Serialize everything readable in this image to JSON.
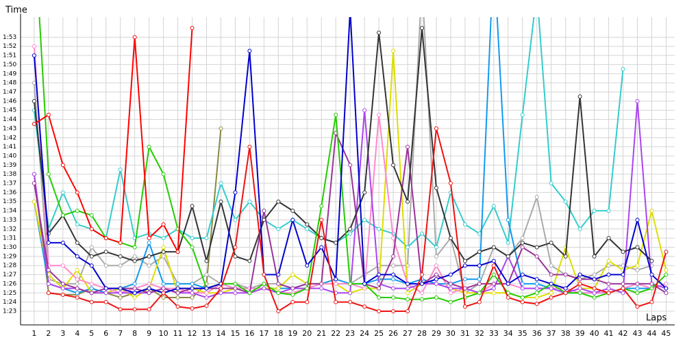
{
  "chart_data": {
    "type": "line",
    "y_label": "Time",
    "x_label": "Laps",
    "grid": true,
    "x": [
      1,
      2,
      3,
      4,
      5,
      6,
      7,
      8,
      9,
      10,
      11,
      12,
      13,
      14,
      15,
      16,
      17,
      18,
      19,
      20,
      21,
      22,
      23,
      24,
      25,
      26,
      27,
      28,
      29,
      30,
      31,
      32,
      33,
      34,
      35,
      36,
      37,
      38,
      39,
      40,
      41,
      42,
      43,
      44,
      45
    ],
    "xlim": [
      0.05,
      45.6
    ],
    "xticks": [
      1,
      2,
      3,
      4,
      5,
      6,
      7,
      8,
      9,
      10,
      11,
      12,
      13,
      14,
      15,
      16,
      17,
      18,
      19,
      20,
      21,
      22,
      23,
      24,
      25,
      26,
      27,
      28,
      29,
      30,
      31,
      32,
      33,
      34,
      35,
      36,
      37,
      38,
      39,
      40,
      41,
      42,
      43,
      44,
      45
    ],
    "ylim": [
      81.5,
      115.2
    ],
    "yticks": [
      {
        "value": 83,
        "label": "1:23"
      },
      {
        "value": 84,
        "label": "1:24"
      },
      {
        "value": 85,
        "label": "1:25"
      },
      {
        "value": 86,
        "label": "1:26"
      },
      {
        "value": 87,
        "label": "1:27"
      },
      {
        "value": 88,
        "label": "1:28"
      },
      {
        "value": 89,
        "label": "1:29"
      },
      {
        "value": 90,
        "label": "1:30"
      },
      {
        "value": 91,
        "label": "1:31"
      },
      {
        "value": 92,
        "label": "1:32"
      },
      {
        "value": 93,
        "label": "1:33"
      },
      {
        "value": 94,
        "label": "1:34"
      },
      {
        "value": 95,
        "label": "1:35"
      },
      {
        "value": 96,
        "label": "1:36"
      },
      {
        "value": 97,
        "label": "1:37"
      },
      {
        "value": 98,
        "label": "1:38"
      },
      {
        "value": 99,
        "label": "1:39"
      },
      {
        "value": 100,
        "label": "1:40"
      },
      {
        "value": 101,
        "label": "1:41"
      },
      {
        "value": 102,
        "label": "1:42"
      },
      {
        "value": 103,
        "label": "1:43"
      },
      {
        "value": 104,
        "label": "1:44"
      },
      {
        "value": 105,
        "label": "1:45"
      },
      {
        "value": 106,
        "label": "1:46"
      },
      {
        "value": 107,
        "label": "1:47"
      },
      {
        "value": 108,
        "label": "1:48"
      },
      {
        "value": 109,
        "label": "1:49"
      },
      {
        "value": 110,
        "label": "1:50"
      },
      {
        "value": 111,
        "label": "1:51"
      },
      {
        "value": 112,
        "label": "1:52"
      },
      {
        "value": 113,
        "label": "1:53"
      }
    ],
    "series": [
      {
        "color": "#888844",
        "values": [
          98,
          85,
          84.8,
          84.8,
          85.5,
          85,
          84.5,
          85,
          85.5,
          84.5,
          84.5,
          84.5,
          86,
          103,
          null,
          null,
          null,
          null,
          null,
          null,
          null,
          null,
          null,
          null,
          null,
          null,
          null,
          null,
          null,
          null,
          null,
          null,
          null,
          null,
          null,
          null,
          null,
          null,
          null,
          null,
          null,
          null,
          null,
          null,
          null
        ]
      },
      {
        "color": "#aaaaaa",
        "values": [
          108,
          86.5,
          86,
          86,
          90,
          88,
          88,
          89,
          88,
          89,
          86,
          86,
          87,
          86,
          86,
          85.5,
          86,
          86,
          85.5,
          85.5,
          86,
          86,
          86,
          87,
          88,
          88,
          88,
          119,
          89,
          91,
          85,
          86,
          90,
          89,
          91,
          95.5,
          88,
          87,
          86.5,
          87,
          88,
          88,
          87.5,
          88,
          null
        ]
      },
      {
        "color": "#33cccc",
        "values": [
          105,
          92,
          96,
          92.5,
          92,
          91,
          98.5,
          91,
          91.5,
          91,
          92,
          91,
          91,
          97,
          93,
          95,
          93,
          92,
          93,
          92,
          91,
          90.5,
          91.5,
          93,
          92,
          91.5,
          90,
          91.5,
          90,
          96,
          92.5,
          91.5,
          94.5,
          90.5,
          104.5,
          118,
          97,
          95,
          92,
          94,
          94,
          109.5,
          null,
          null,
          null
        ]
      },
      {
        "color": "#1199ee",
        "values": [
          95,
          86,
          85.5,
          85,
          85.5,
          85,
          85.5,
          86,
          90.5,
          86,
          86,
          86,
          85.5,
          86,
          85.5,
          85.5,
          85.5,
          85.5,
          85.5,
          86,
          86,
          86.5,
          86,
          86,
          86.5,
          86.5,
          86,
          86.5,
          86,
          86,
          86.5,
          86.5,
          122,
          93,
          86,
          86,
          85.5,
          85,
          85,
          85,
          85,
          85.5,
          85.5,
          85.5,
          null
        ]
      },
      {
        "color": "#dddd00",
        "values": [
          95,
          87,
          85.5,
          87.5,
          85,
          85,
          85.5,
          84.5,
          85.5,
          90,
          85,
          85.5,
          85,
          85,
          85.5,
          85,
          85.5,
          85.5,
          87,
          86,
          86,
          86,
          85,
          85.5,
          85.5,
          111.5,
          85,
          86,
          86,
          85.5,
          85,
          85,
          85,
          85,
          84.5,
          84.5,
          85,
          90,
          85.5,
          85.5,
          88.5,
          87.5,
          88,
          94,
          87.5
        ]
      },
      {
        "color": "#ff88cc",
        "values": [
          112,
          88,
          88,
          86.5,
          86,
          85.5,
          85,
          85.5,
          86,
          85.5,
          85.5,
          85,
          85,
          86,
          85.5,
          85.5,
          85.5,
          85,
          85,
          85.5,
          86,
          86,
          86,
          85.5,
          104.5,
          91,
          86,
          85,
          88,
          85,
          85.5,
          85,
          86,
          86,
          85.5,
          85.5,
          85.5,
          85.5,
          85,
          85,
          85,
          85.5,
          86,
          85.5,
          86
        ]
      },
      {
        "color": "#aa44ee",
        "values": [
          98,
          86,
          85.5,
          85.5,
          85,
          85,
          85,
          85,
          85,
          85.5,
          85,
          85,
          84.5,
          85,
          85,
          85,
          85.5,
          85,
          85.5,
          85.5,
          85.5,
          85,
          85,
          105,
          86,
          85.5,
          85.5,
          86,
          86,
          85.5,
          85.5,
          85,
          85.5,
          89,
          85.5,
          85.5,
          85.5,
          85,
          85.5,
          85,
          85.5,
          85,
          106,
          86,
          85.5
        ]
      },
      {
        "color": "#993399",
        "values": [
          97,
          87.5,
          86,
          85.5,
          85,
          85.5,
          85.5,
          85.5,
          85,
          85.5,
          85,
          85.5,
          85.5,
          85.5,
          85.5,
          85,
          94,
          86,
          85.5,
          86,
          86,
          102.5,
          99,
          86,
          85.5,
          89,
          101,
          86,
          87,
          86,
          85.5,
          86,
          86,
          86,
          90,
          89,
          87,
          87,
          86.5,
          86.5,
          86,
          86,
          86,
          86,
          85
        ]
      },
      {
        "color": "#333333",
        "values": [
          106,
          91.5,
          93.5,
          90.5,
          89,
          89.5,
          89,
          88.5,
          89,
          89.5,
          89.5,
          94.5,
          88.5,
          95,
          89,
          88.5,
          93,
          95,
          94,
          92.5,
          91,
          90.5,
          92,
          96,
          113.5,
          99,
          95,
          114,
          96.5,
          91,
          88.5,
          89.5,
          90,
          89,
          90.5,
          90,
          90.5,
          89,
          106.5,
          89,
          91,
          89.5,
          90,
          88.5,
          null
        ]
      },
      {
        "color": "#22cc00",
        "values": [
          125,
          98,
          93.5,
          94,
          93.5,
          91,
          90.5,
          90,
          101,
          98,
          92,
          90,
          85.5,
          86,
          86,
          85,
          86,
          85,
          84.8,
          85.5,
          94.5,
          104.5,
          86,
          86,
          84.5,
          84.5,
          84.3,
          84.3,
          84.5,
          84,
          84.5,
          85,
          87,
          85,
          84.5,
          85,
          86,
          85,
          85,
          84.5,
          85,
          85.5,
          85,
          85.5,
          87
        ]
      },
      {
        "color": "#0000cc",
        "values": [
          111,
          90.5,
          90.5,
          89,
          88,
          85.5,
          85.5,
          85,
          85.5,
          85,
          85.5,
          85.5,
          85.5,
          86,
          96,
          111.5,
          87,
          87,
          93,
          88,
          90,
          86.5,
          116,
          86,
          87,
          87,
          86,
          86,
          86.5,
          87,
          88,
          88,
          88.5,
          86,
          87,
          86.5,
          86,
          85.5,
          87,
          86.5,
          87,
          87,
          93,
          87,
          85.5
        ]
      },
      {
        "color": "#ee1111",
        "values": [
          null,
          85,
          84.8,
          84.5,
          84,
          84,
          83.2,
          83.2,
          83.2,
          85,
          83.5,
          83.3,
          83.6,
          85.5,
          90,
          101,
          87,
          83,
          84,
          84,
          93,
          84,
          84,
          83.5,
          83,
          83,
          83,
          87,
          103,
          97,
          83.5,
          84,
          88,
          84.5,
          84,
          83.8,
          84.5,
          85,
          86,
          85.5,
          85,
          85.5,
          83.5,
          84,
          89.5
        ]
      },
      {
        "color": "#ff0000",
        "values": [
          103.5,
          104.5,
          99,
          96,
          92,
          91,
          90.5,
          113,
          91,
          92.5,
          89.5,
          114,
          null,
          null,
          null,
          null,
          null,
          null,
          null,
          null,
          null,
          null,
          null,
          null,
          null,
          null,
          null,
          null,
          null,
          null,
          null,
          null,
          null,
          null,
          null,
          null,
          null,
          null,
          null,
          null,
          null,
          null,
          null,
          null,
          null
        ]
      }
    ]
  }
}
